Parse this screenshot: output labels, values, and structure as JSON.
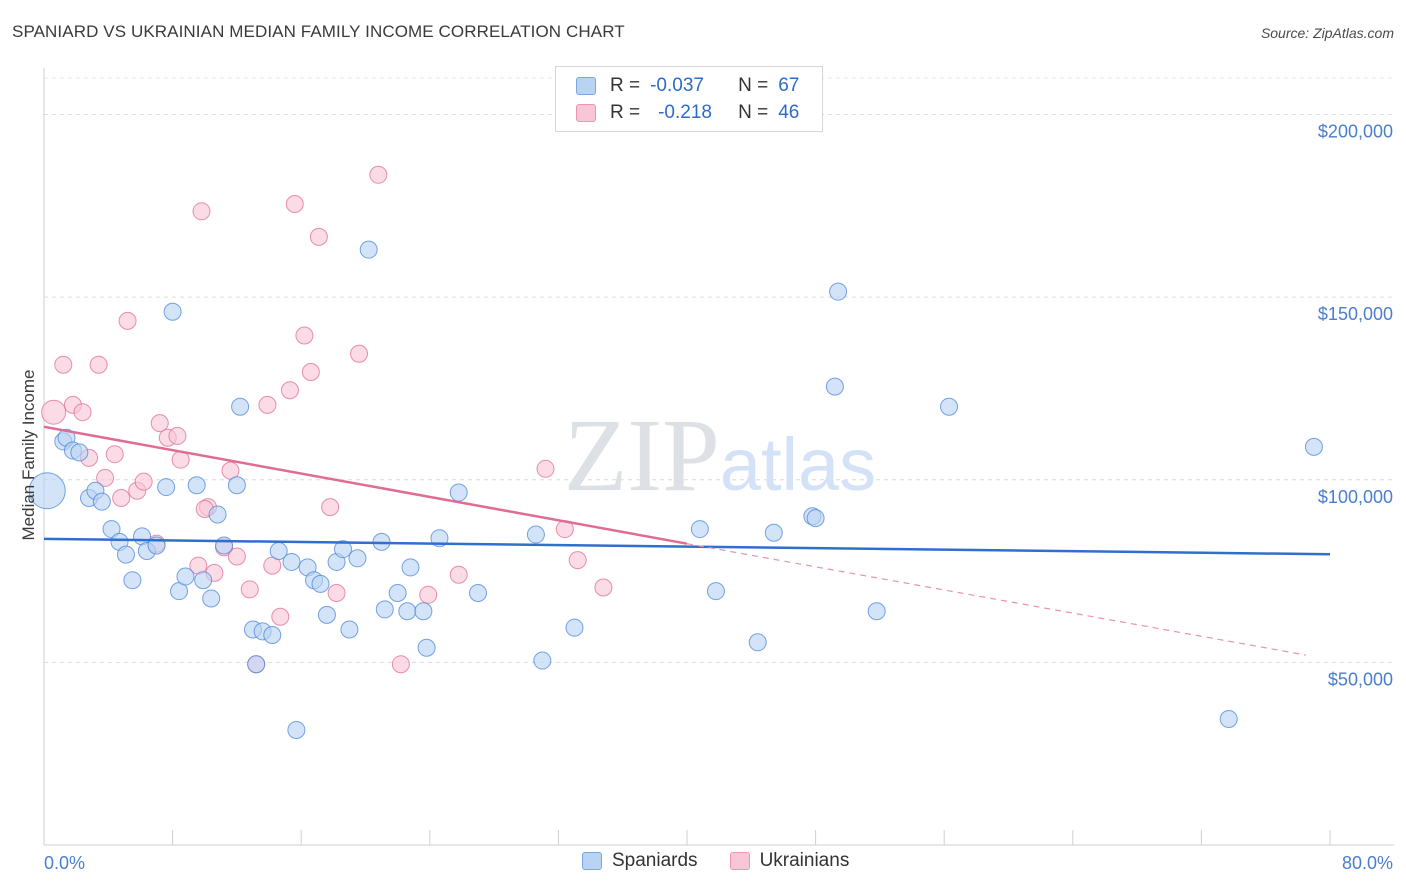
{
  "title": "SPANIARD VS UKRAINIAN MEDIAN FAMILY INCOME CORRELATION CHART",
  "source": "Source: ZipAtlas.com",
  "watermark": "ZIPatlas",
  "legend_top": {
    "rows": [
      {
        "r_label": "R =",
        "r_value": "-0.037",
        "n_label": "N =",
        "n_value": "67",
        "color": "#7aa7e0",
        "fill": "#b9d3f3"
      },
      {
        "r_label": "R =",
        "r_value": "-0.218",
        "n_label": "N =",
        "n_value": "46",
        "color": "#ee93b2",
        "fill": "#f8c7d7"
      }
    ]
  },
  "legend_bottom": {
    "items": [
      {
        "label": "Spaniards",
        "fill": "#b9d3f3",
        "stroke": "#7aa7e0"
      },
      {
        "label": "Ukrainians",
        "fill": "#f8c7d7",
        "stroke": "#ee93b2"
      }
    ]
  },
  "chart_data": {
    "type": "scatter",
    "title": "SPANIARD VS UKRAINIAN MEDIAN FAMILY INCOME CORRELATION CHART",
    "xlabel": "",
    "ylabel": "Median Family Income",
    "xlim": [
      0,
      80
    ],
    "ylim": [
      0,
      210000
    ],
    "x_tick_labels": [
      "0.0%",
      "80.0%"
    ],
    "y_ticks": [
      50000,
      100000,
      150000,
      200000
    ],
    "y_tick_labels": [
      "$50,000",
      "$100,000",
      "$150,000",
      "$200,000"
    ],
    "grid": true,
    "legend_position": "top-center",
    "series": [
      {
        "name": "Spaniards",
        "color": "#4a86d8",
        "fill": "#b9d3f3",
        "trend": {
          "x": [
            0,
            80
          ],
          "y": [
            83800,
            79600
          ]
        },
        "points": [
          [
            0.2,
            97000,
            "big"
          ],
          [
            1.2,
            110500
          ],
          [
            1.4,
            111500
          ],
          [
            1.8,
            108000
          ],
          [
            2.2,
            107500
          ],
          [
            2.8,
            95000
          ],
          [
            3.2,
            97000
          ],
          [
            3.6,
            94000
          ],
          [
            4.2,
            86500
          ],
          [
            4.7,
            83000
          ],
          [
            5.1,
            79500
          ],
          [
            5.5,
            72500
          ],
          [
            6.1,
            84500
          ],
          [
            6.4,
            80500
          ],
          [
            7.0,
            82000
          ],
          [
            7.6,
            98000
          ],
          [
            8.0,
            146000
          ],
          [
            8.4,
            69500
          ],
          [
            8.8,
            73500
          ],
          [
            9.5,
            98500
          ],
          [
            9.9,
            72500
          ],
          [
            10.4,
            67500
          ],
          [
            10.8,
            90500
          ],
          [
            11.2,
            82000
          ],
          [
            12.0,
            98500
          ],
          [
            12.2,
            120000
          ],
          [
            13.0,
            59000
          ],
          [
            13.2,
            49500
          ],
          [
            13.6,
            58500
          ],
          [
            14.2,
            57500
          ],
          [
            14.6,
            80500
          ],
          [
            15.4,
            77500
          ],
          [
            15.7,
            31500
          ],
          [
            16.4,
            76000
          ],
          [
            16.8,
            72500
          ],
          [
            17.2,
            71500
          ],
          [
            17.6,
            63000
          ],
          [
            18.2,
            77500
          ],
          [
            18.6,
            81000
          ],
          [
            19.0,
            59000
          ],
          [
            19.5,
            78500
          ],
          [
            20.2,
            163000
          ],
          [
            21.0,
            83000
          ],
          [
            21.2,
            64500
          ],
          [
            22.0,
            69000
          ],
          [
            22.6,
            64000
          ],
          [
            22.8,
            76000
          ],
          [
            23.6,
            64000
          ],
          [
            23.8,
            54000
          ],
          [
            24.6,
            84000
          ],
          [
            25.8,
            96500
          ],
          [
            27.0,
            69000
          ],
          [
            30.6,
            85000
          ],
          [
            31.0,
            50500
          ],
          [
            33.0,
            59500
          ],
          [
            40.8,
            86500
          ],
          [
            41.8,
            69500
          ],
          [
            44.4,
            55500
          ],
          [
            45.4,
            85500
          ],
          [
            47.8,
            90000
          ],
          [
            48.0,
            89500
          ],
          [
            49.2,
            125500
          ],
          [
            49.4,
            151500
          ],
          [
            51.8,
            64000
          ],
          [
            56.3,
            120000
          ],
          [
            73.7,
            34500
          ],
          [
            79.0,
            109000
          ]
        ]
      },
      {
        "name": "Ukrainians",
        "color": "#e06b94",
        "fill": "#f8c7d7",
        "trend": {
          "x": [
            0,
            40
          ],
          "y": [
            114500,
            82500
          ]
        },
        "trend_dashed": {
          "x": [
            40,
            78.5
          ],
          "y": [
            82500,
            52000
          ]
        },
        "points": [
          [
            0.6,
            118500,
            "mid"
          ],
          [
            1.2,
            131500
          ],
          [
            1.8,
            120500
          ],
          [
            2.4,
            118500
          ],
          [
            2.8,
            106000
          ],
          [
            3.4,
            131500
          ],
          [
            3.8,
            100500
          ],
          [
            4.4,
            107000
          ],
          [
            4.8,
            95000
          ],
          [
            5.2,
            143500
          ],
          [
            5.8,
            97000
          ],
          [
            6.2,
            99500
          ],
          [
            7.0,
            82500
          ],
          [
            7.2,
            115500
          ],
          [
            7.7,
            111500
          ],
          [
            8.3,
            112000
          ],
          [
            8.5,
            105500
          ],
          [
            9.6,
            76500
          ],
          [
            9.8,
            173500
          ],
          [
            10.2,
            92500
          ],
          [
            10.6,
            74500
          ],
          [
            11.2,
            81500
          ],
          [
            11.6,
            102500
          ],
          [
            12.0,
            79000
          ],
          [
            12.8,
            70000
          ],
          [
            13.2,
            49500
          ],
          [
            13.9,
            120500
          ],
          [
            14.2,
            76500
          ],
          [
            14.7,
            62500
          ],
          [
            15.3,
            124500
          ],
          [
            15.6,
            175500
          ],
          [
            16.2,
            139500
          ],
          [
            16.6,
            129500
          ],
          [
            17.1,
            166500
          ],
          [
            17.8,
            92500
          ],
          [
            18.2,
            69000
          ],
          [
            19.6,
            134500
          ],
          [
            20.8,
            183500
          ],
          [
            22.2,
            49500
          ],
          [
            23.9,
            68500
          ],
          [
            25.8,
            74000
          ],
          [
            31.2,
            103000
          ],
          [
            32.4,
            86500
          ],
          [
            33.2,
            78000
          ],
          [
            34.8,
            70500
          ],
          [
            10.0,
            92000
          ]
        ]
      }
    ]
  }
}
